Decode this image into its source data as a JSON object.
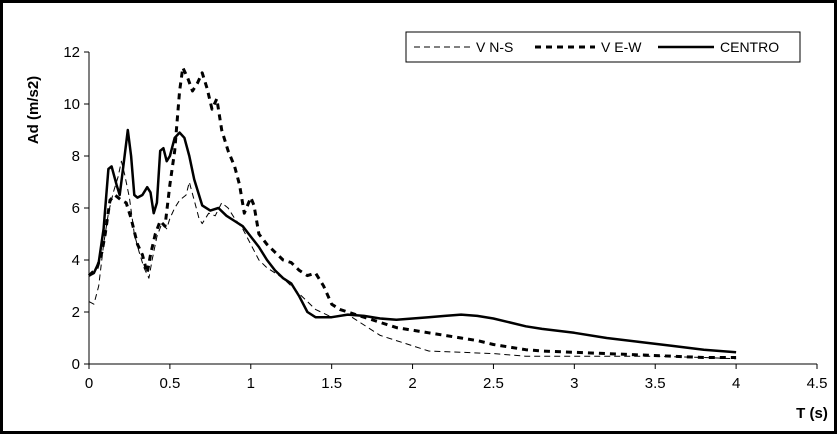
{
  "chart_data": {
    "type": "line",
    "title": "",
    "xlabel": "T (s)",
    "ylabel": "Ad (m/s2)",
    "xlim": [
      0,
      4.5
    ],
    "ylim": [
      0,
      12
    ],
    "x_ticks": [
      "0",
      "0.5",
      "1",
      "1.5",
      "2",
      "2.5",
      "3",
      "3.5",
      "4",
      "4.5"
    ],
    "y_ticks": [
      "0",
      "2",
      "4",
      "6",
      "8",
      "10",
      "12"
    ],
    "grid": false,
    "legend_position": "top-right",
    "series": [
      {
        "name": "V N-S",
        "style": "thin-dashed",
        "color": "#000000",
        "points": [
          [
            0,
            2.4
          ],
          [
            0.03,
            2.3
          ],
          [
            0.06,
            3.0
          ],
          [
            0.09,
            4.6
          ],
          [
            0.12,
            5.8
          ],
          [
            0.15,
            6.6
          ],
          [
            0.18,
            7.2
          ],
          [
            0.2,
            7.8
          ],
          [
            0.22,
            7.3
          ],
          [
            0.25,
            6.4
          ],
          [
            0.28,
            5.0
          ],
          [
            0.31,
            4.3
          ],
          [
            0.34,
            3.7
          ],
          [
            0.37,
            3.3
          ],
          [
            0.39,
            4.0
          ],
          [
            0.42,
            4.9
          ],
          [
            0.45,
            5.4
          ],
          [
            0.48,
            5.2
          ],
          [
            0.5,
            5.6
          ],
          [
            0.53,
            6.0
          ],
          [
            0.56,
            6.3
          ],
          [
            0.6,
            6.5
          ],
          [
            0.62,
            7.0
          ],
          [
            0.65,
            6.3
          ],
          [
            0.68,
            5.6
          ],
          [
            0.7,
            5.4
          ],
          [
            0.74,
            5.8
          ],
          [
            0.78,
            5.7
          ],
          [
            0.82,
            6.2
          ],
          [
            0.86,
            6.0
          ],
          [
            0.9,
            5.6
          ],
          [
            0.95,
            5.2
          ],
          [
            1.0,
            4.6
          ],
          [
            1.05,
            4.0
          ],
          [
            1.1,
            3.7
          ],
          [
            1.2,
            3.3
          ],
          [
            1.3,
            2.7
          ],
          [
            1.4,
            2.1
          ],
          [
            1.5,
            1.8
          ],
          [
            1.6,
            1.9
          ],
          [
            1.7,
            1.5
          ],
          [
            1.8,
            1.1
          ],
          [
            1.9,
            0.9
          ],
          [
            2.0,
            0.7
          ],
          [
            2.1,
            0.5
          ],
          [
            2.3,
            0.45
          ],
          [
            2.5,
            0.4
          ],
          [
            2.7,
            0.3
          ],
          [
            3.0,
            0.3
          ],
          [
            3.3,
            0.3
          ],
          [
            3.5,
            0.3
          ],
          [
            3.8,
            0.25
          ],
          [
            4.0,
            0.2
          ]
        ]
      },
      {
        "name": "V E-W",
        "style": "thick-dashed",
        "color": "#000000",
        "points": [
          [
            0,
            3.4
          ],
          [
            0.05,
            3.7
          ],
          [
            0.08,
            4.3
          ],
          [
            0.1,
            5.0
          ],
          [
            0.13,
            6.3
          ],
          [
            0.16,
            6.5
          ],
          [
            0.2,
            6.3
          ],
          [
            0.23,
            6.2
          ],
          [
            0.26,
            5.6
          ],
          [
            0.3,
            4.6
          ],
          [
            0.33,
            4.2
          ],
          [
            0.36,
            3.5
          ],
          [
            0.38,
            4.2
          ],
          [
            0.41,
            5.0
          ],
          [
            0.44,
            5.5
          ],
          [
            0.47,
            5.3
          ],
          [
            0.5,
            6.9
          ],
          [
            0.53,
            8.2
          ],
          [
            0.56,
            10.5
          ],
          [
            0.58,
            11.4
          ],
          [
            0.61,
            11.0
          ],
          [
            0.64,
            10.5
          ],
          [
            0.67,
            10.8
          ],
          [
            0.7,
            11.2
          ],
          [
            0.73,
            10.6
          ],
          [
            0.76,
            9.8
          ],
          [
            0.79,
            10.2
          ],
          [
            0.82,
            9.0
          ],
          [
            0.86,
            8.2
          ],
          [
            0.9,
            7.6
          ],
          [
            0.93,
            6.9
          ],
          [
            0.96,
            5.8
          ],
          [
            1.0,
            6.4
          ],
          [
            1.02,
            6.1
          ],
          [
            1.05,
            5.0
          ],
          [
            1.1,
            4.6
          ],
          [
            1.15,
            4.3
          ],
          [
            1.2,
            4.0
          ],
          [
            1.25,
            3.9
          ],
          [
            1.3,
            3.6
          ],
          [
            1.35,
            3.4
          ],
          [
            1.4,
            3.5
          ],
          [
            1.45,
            3.0
          ],
          [
            1.5,
            2.3
          ],
          [
            1.55,
            2.1
          ],
          [
            1.6,
            2.0
          ],
          [
            1.7,
            1.8
          ],
          [
            1.8,
            1.6
          ],
          [
            1.9,
            1.4
          ],
          [
            2.0,
            1.3
          ],
          [
            2.1,
            1.2
          ],
          [
            2.2,
            1.1
          ],
          [
            2.3,
            1.0
          ],
          [
            2.4,
            0.9
          ],
          [
            2.5,
            0.75
          ],
          [
            2.6,
            0.65
          ],
          [
            2.7,
            0.55
          ],
          [
            2.8,
            0.5
          ],
          [
            3.0,
            0.45
          ],
          [
            3.2,
            0.4
          ],
          [
            3.4,
            0.35
          ],
          [
            3.6,
            0.3
          ],
          [
            3.8,
            0.25
          ],
          [
            4.0,
            0.25
          ]
        ]
      },
      {
        "name": "CENTRO",
        "style": "thick-solid",
        "color": "#000000",
        "points": [
          [
            0,
            3.4
          ],
          [
            0.03,
            3.5
          ],
          [
            0.06,
            3.9
          ],
          [
            0.09,
            5.2
          ],
          [
            0.12,
            7.5
          ],
          [
            0.14,
            7.6
          ],
          [
            0.17,
            6.9
          ],
          [
            0.19,
            6.5
          ],
          [
            0.21,
            7.5
          ],
          [
            0.24,
            9.0
          ],
          [
            0.26,
            8.0
          ],
          [
            0.28,
            6.5
          ],
          [
            0.3,
            6.4
          ],
          [
            0.33,
            6.5
          ],
          [
            0.36,
            6.8
          ],
          [
            0.38,
            6.6
          ],
          [
            0.4,
            5.8
          ],
          [
            0.42,
            6.2
          ],
          [
            0.44,
            8.2
          ],
          [
            0.46,
            8.3
          ],
          [
            0.48,
            7.8
          ],
          [
            0.5,
            8.0
          ],
          [
            0.53,
            8.7
          ],
          [
            0.56,
            8.9
          ],
          [
            0.59,
            8.7
          ],
          [
            0.62,
            8.0
          ],
          [
            0.65,
            7.1
          ],
          [
            0.7,
            6.1
          ],
          [
            0.75,
            5.9
          ],
          [
            0.8,
            6.0
          ],
          [
            0.85,
            5.7
          ],
          [
            0.9,
            5.5
          ],
          [
            0.95,
            5.3
          ],
          [
            1.0,
            4.9
          ],
          [
            1.05,
            4.5
          ],
          [
            1.1,
            4.0
          ],
          [
            1.15,
            3.6
          ],
          [
            1.2,
            3.3
          ],
          [
            1.25,
            3.1
          ],
          [
            1.3,
            2.6
          ],
          [
            1.35,
            2.0
          ],
          [
            1.4,
            1.8
          ],
          [
            1.5,
            1.8
          ],
          [
            1.6,
            1.9
          ],
          [
            1.7,
            1.85
          ],
          [
            1.8,
            1.75
          ],
          [
            1.9,
            1.7
          ],
          [
            2.0,
            1.75
          ],
          [
            2.1,
            1.8
          ],
          [
            2.2,
            1.85
          ],
          [
            2.3,
            1.9
          ],
          [
            2.4,
            1.85
          ],
          [
            2.5,
            1.75
          ],
          [
            2.6,
            1.6
          ],
          [
            2.7,
            1.45
          ],
          [
            2.8,
            1.35
          ],
          [
            3.0,
            1.2
          ],
          [
            3.2,
            1.0
          ],
          [
            3.4,
            0.85
          ],
          [
            3.6,
            0.7
          ],
          [
            3.8,
            0.55
          ],
          [
            4.0,
            0.45
          ]
        ]
      }
    ]
  }
}
